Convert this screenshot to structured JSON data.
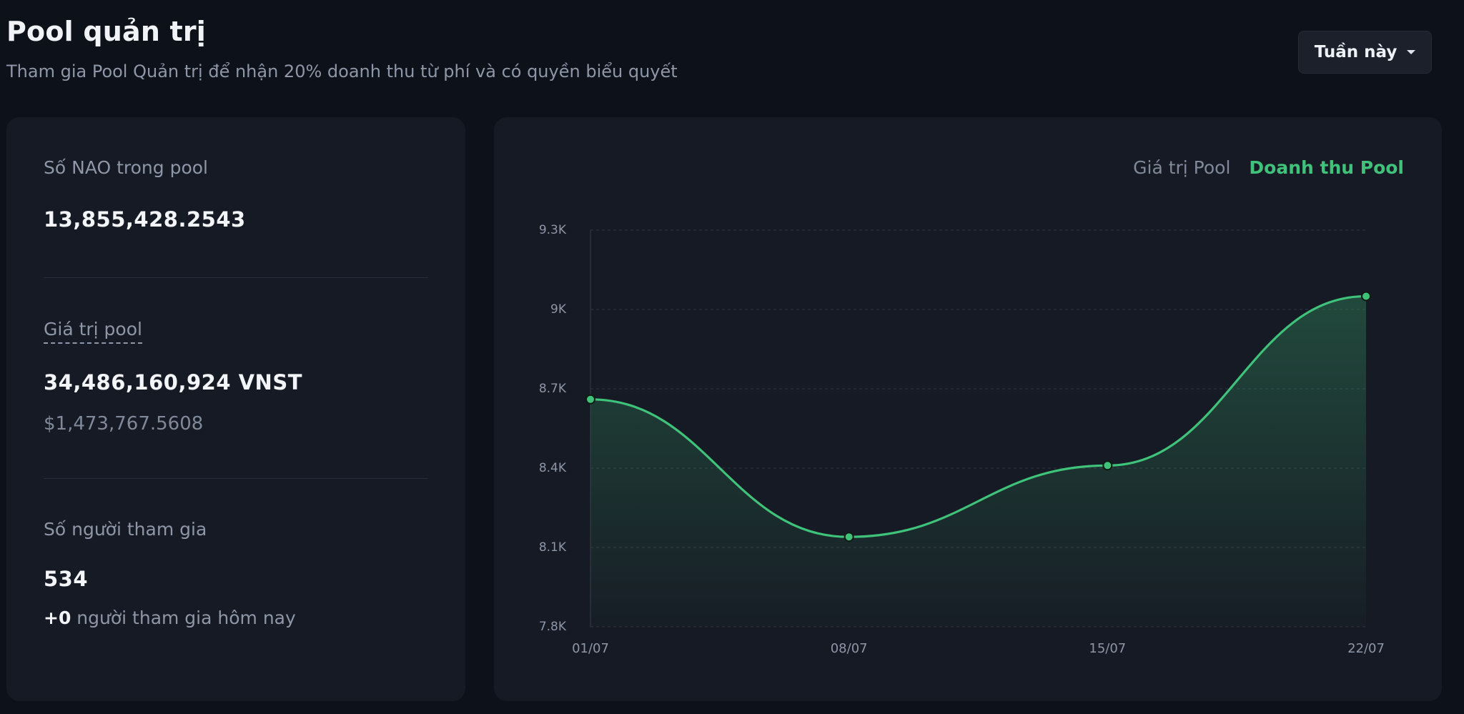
{
  "header": {
    "title": "Pool quản trị",
    "subtitle": "Tham gia Pool Quản trị để nhận 20% doanh thu từ phí và có quyền biểu quyết",
    "period_label": "Tuần này"
  },
  "stats": {
    "nao_label": "Số NAO trong pool",
    "nao_value": "13,855,428.2543",
    "pool_value_label": "Giá trị pool",
    "pool_value_vnst": "34,486,160,924 VNST",
    "pool_value_usd": "$1,473,767.5608",
    "participants_label": "Số người tham gia",
    "participants_value": "534",
    "today_count": "+0",
    "today_text": "người tham gia hôm nay"
  },
  "chart_tabs": {
    "pool_value": "Giá trị Pool",
    "pool_revenue": "Doanh thu Pool",
    "active": "pool_revenue"
  },
  "colors": {
    "accent": "#3fc27a",
    "background": "#0d111a",
    "card": "#161a24"
  },
  "chart_data": {
    "type": "area",
    "x": [
      "01/07",
      "08/07",
      "15/07",
      "22/07"
    ],
    "series": [
      {
        "values": [
          8660,
          8140,
          8410,
          9050
        ]
      }
    ],
    "yticks": [
      7800,
      8100,
      8400,
      8700,
      9000,
      9300
    ],
    "ytick_labels": [
      "7.8K",
      "8.1K",
      "8.4K",
      "8.7K",
      "9K",
      "9.3K"
    ],
    "ylim": [
      7800,
      9300
    ],
    "grid": true,
    "color": "#3fc27a"
  }
}
